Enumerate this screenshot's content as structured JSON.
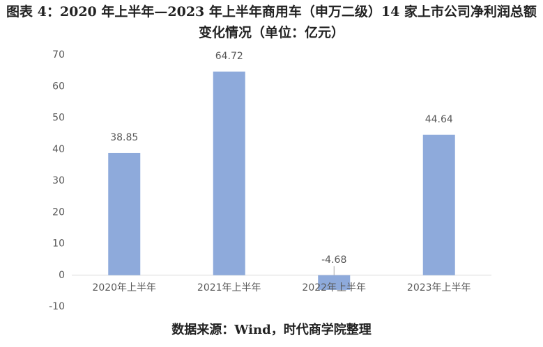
{
  "chart_data": {
    "type": "bar",
    "title": "图表 4：2020 年上半年—2023 年上半年商用车（申万二级）14 家上市公司净利润总额变化情况（单位：亿元）",
    "categories": [
      "2020年上半年",
      "2021年上半年",
      "2022年上半年",
      "2023年上半年"
    ],
    "values": [
      38.85,
      64.72,
      -4.68,
      44.64
    ],
    "color": "#8eaadb",
    "ylim": [
      -10,
      70
    ],
    "yticks": [
      -10,
      0,
      10,
      20,
      30,
      40,
      50,
      60,
      70
    ],
    "grid": false,
    "source": "数据来源：Wind，时代商学院整理"
  }
}
